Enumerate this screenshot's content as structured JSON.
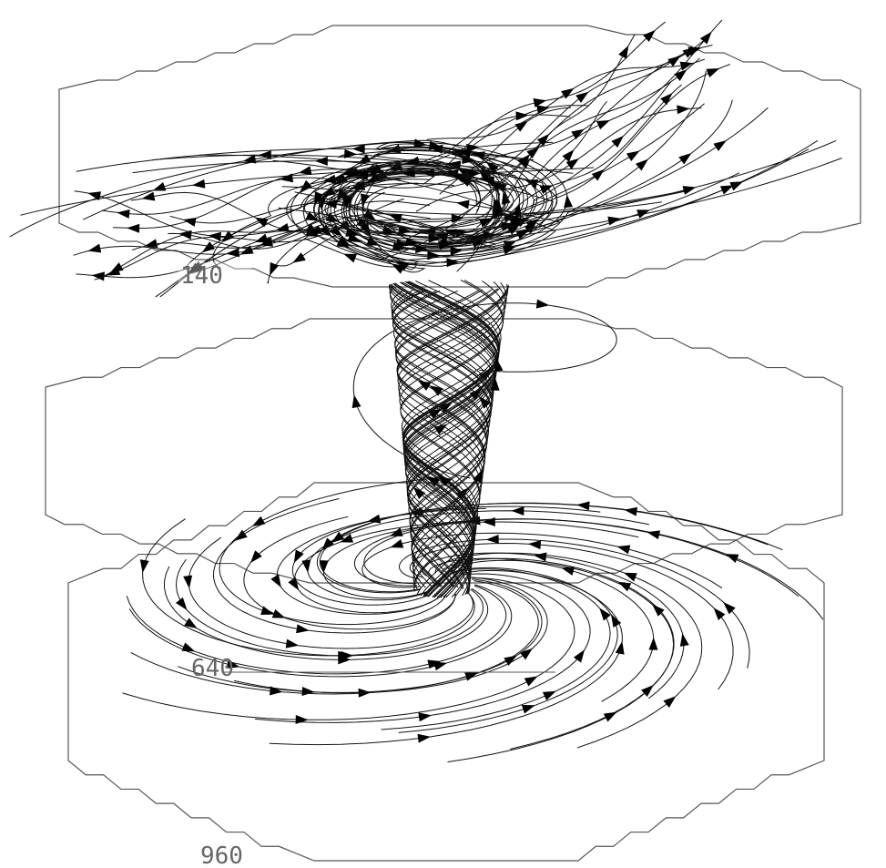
{
  "level_labels": [
    "140",
    "640",
    "960"
  ]
}
